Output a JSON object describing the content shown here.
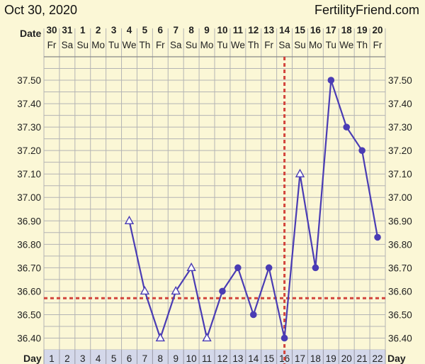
{
  "header": {
    "date": "Oct 30, 2020",
    "site": "FertilityFriend.com"
  },
  "labels": {
    "date_row": "Date",
    "day_row": "Day"
  },
  "chart_data": {
    "type": "line",
    "title": "",
    "dates": [
      "30",
      "31",
      "1",
      "2",
      "3",
      "4",
      "5",
      "6",
      "7",
      "8",
      "9",
      "10",
      "11",
      "12",
      "13",
      "14",
      "15",
      "16",
      "17",
      "18",
      "19",
      "20"
    ],
    "weekdays": [
      "Fr",
      "Sa",
      "Su",
      "Mo",
      "Tu",
      "We",
      "Th",
      "Fr",
      "Sa",
      "Su",
      "Mo",
      "Tu",
      "We",
      "Th",
      "Fr",
      "Sa",
      "Su",
      "Mo",
      "Tu",
      "We",
      "Th",
      "Fr"
    ],
    "days": [
      1,
      2,
      3,
      4,
      5,
      6,
      7,
      8,
      9,
      10,
      11,
      12,
      13,
      14,
      15,
      16,
      17,
      18,
      19,
      20,
      21,
      22
    ],
    "ylim": [
      36.35,
      37.6
    ],
    "yticks": [
      "37.50",
      "37.40",
      "37.30",
      "37.20",
      "37.10",
      "37.00",
      "36.90",
      "36.80",
      "36.70",
      "36.60",
      "36.50",
      "36.40"
    ],
    "points": [
      {
        "day": 6,
        "temp": 36.9,
        "marker": "triangle"
      },
      {
        "day": 7,
        "temp": 36.6,
        "marker": "triangle"
      },
      {
        "day": 8,
        "temp": 36.4,
        "marker": "triangle"
      },
      {
        "day": 9,
        "temp": 36.6,
        "marker": "triangle"
      },
      {
        "day": 10,
        "temp": 36.7,
        "marker": "triangle"
      },
      {
        "day": 11,
        "temp": 36.4,
        "marker": "triangle"
      },
      {
        "day": 12,
        "temp": 36.6,
        "marker": "dot"
      },
      {
        "day": 13,
        "temp": 36.7,
        "marker": "dot"
      },
      {
        "day": 14,
        "temp": 36.5,
        "marker": "dot"
      },
      {
        "day": 15,
        "temp": 36.7,
        "marker": "dot"
      },
      {
        "day": 16,
        "temp": 36.4,
        "marker": "dot"
      },
      {
        "day": 17,
        "temp": 37.1,
        "marker": "triangle"
      },
      {
        "day": 18,
        "temp": 36.7,
        "marker": "dot"
      },
      {
        "day": 19,
        "temp": 37.5,
        "marker": "dot"
      },
      {
        "day": 20,
        "temp": 37.3,
        "marker": "dot"
      },
      {
        "day": 21,
        "temp": 37.2,
        "marker": "dot"
      },
      {
        "day": 22,
        "temp": 36.83,
        "marker": "dot"
      }
    ],
    "coverline": 36.57,
    "ovulation_day": 16,
    "colors": {
      "line": "#4a3cb4",
      "coverline": "#d2443c",
      "grid": "#b4b4b4",
      "background": "#fbf7d6",
      "day_row": "#d4d8ea"
    }
  }
}
